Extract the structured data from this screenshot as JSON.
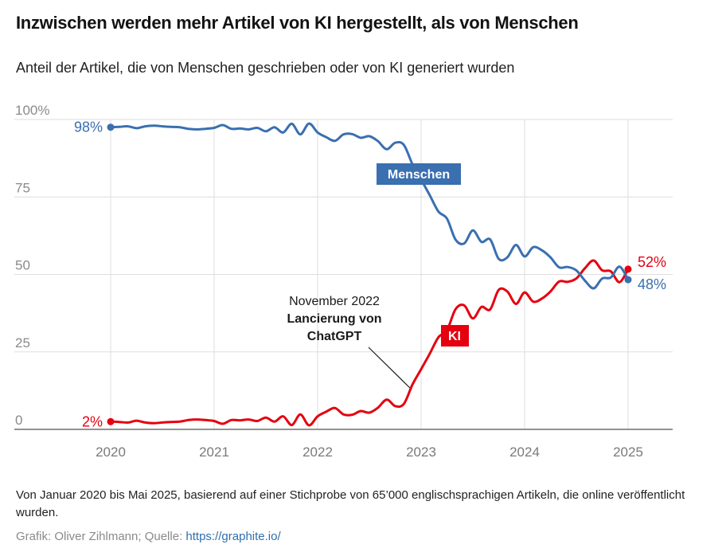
{
  "title": "Inzwischen werden mehr Artikel von KI hergestellt, als von Menschen",
  "subtitle": "Anteil der Artikel, die von Menschen geschrieben oder von KI generiert wurden",
  "colors": {
    "menschen": "#3a6fb0",
    "ki": "#e5000f",
    "grid": "#dedede",
    "axis": "#6e6e6e",
    "link": "#2f6fae"
  },
  "chart_data": {
    "type": "line",
    "title": "Anteil der Artikel, die von Menschen geschrieben oder von KI generiert wurden",
    "xlabel": "",
    "ylabel": "",
    "ylim": [
      0,
      100
    ],
    "xlim": [
      "2020-01",
      "2025-05"
    ],
    "grid": true,
    "y_ticks": [
      {
        "value": 0,
        "label": "0"
      },
      {
        "value": 25,
        "label": "25"
      },
      {
        "value": 50,
        "label": "50"
      },
      {
        "value": 75,
        "label": "75"
      },
      {
        "value": 100,
        "label": "100%"
      }
    ],
    "x_ticks": [
      {
        "value": 0,
        "label": "2020"
      },
      {
        "value": 12,
        "label": "2021"
      },
      {
        "value": 24,
        "label": "2022"
      },
      {
        "value": 36,
        "label": "2023"
      },
      {
        "value": 48,
        "label": "2024"
      },
      {
        "value": 60,
        "label": "2025"
      }
    ],
    "x_unit": "months since January 2020",
    "series": [
      {
        "name": "Menschen",
        "color": "#3a6fb0",
        "start_label": "98%",
        "end_label": "48%",
        "values": [
          97.5,
          97.6,
          97.8,
          97.2,
          97.8,
          98.0,
          97.8,
          97.6,
          97.5,
          97.0,
          96.8,
          97.0,
          97.3,
          98.2,
          97.0,
          97.1,
          96.8,
          97.3,
          96.2,
          97.5,
          95.8,
          98.6,
          95.2,
          98.7,
          95.8,
          94.3,
          93.1,
          95.2,
          95.3,
          94.1,
          94.6,
          93.0,
          90.4,
          92.5,
          91.8,
          85.5,
          80.6,
          75.6,
          70.3,
          68.0,
          61.2,
          60.0,
          64.2,
          60.5,
          61.3,
          55.0,
          55.5,
          59.5,
          55.8,
          58.8,
          57.8,
          55.5,
          52.3,
          52.4,
          51.3,
          48.0,
          45.5,
          48.7,
          49.0,
          52.5,
          48.3
        ]
      },
      {
        "name": "KI",
        "color": "#e5000f",
        "start_label": "2%",
        "end_label": "52%",
        "values": [
          2.5,
          2.4,
          2.2,
          2.8,
          2.2,
          2.0,
          2.2,
          2.4,
          2.5,
          3.0,
          3.2,
          3.0,
          2.7,
          1.8,
          3.0,
          2.9,
          3.2,
          2.7,
          3.8,
          2.5,
          4.2,
          1.4,
          4.8,
          1.3,
          4.2,
          5.7,
          6.9,
          4.8,
          4.7,
          5.9,
          5.4,
          7.0,
          9.6,
          7.5,
          8.2,
          14.5,
          19.4,
          24.4,
          29.7,
          32.0,
          38.8,
          40.0,
          35.8,
          39.5,
          38.7,
          45.0,
          44.5,
          40.5,
          44.2,
          41.2,
          42.2,
          44.5,
          47.7,
          47.6,
          48.7,
          52.0,
          54.5,
          51.3,
          51.0,
          47.5,
          51.7
        ]
      }
    ],
    "series_labels": [
      {
        "series": "Menschen",
        "text": "Menschen"
      },
      {
        "series": "KI",
        "text": "KI"
      }
    ],
    "annotations": [
      {
        "x": "2022-11",
        "line1": "November 2022",
        "line2": "Lancierung von",
        "line3": "ChatGPT"
      }
    ]
  },
  "footer": {
    "note": "Von Januar 2020 bis Mai 2025, basierend auf einer Stichprobe von 65’000 englischsprachigen Artikeln, die online veröffentlicht wurden.",
    "credit_prefix": "Grafik: Oliver Zihlmann; Quelle: ",
    "source_link": "https://graphite.io/"
  }
}
